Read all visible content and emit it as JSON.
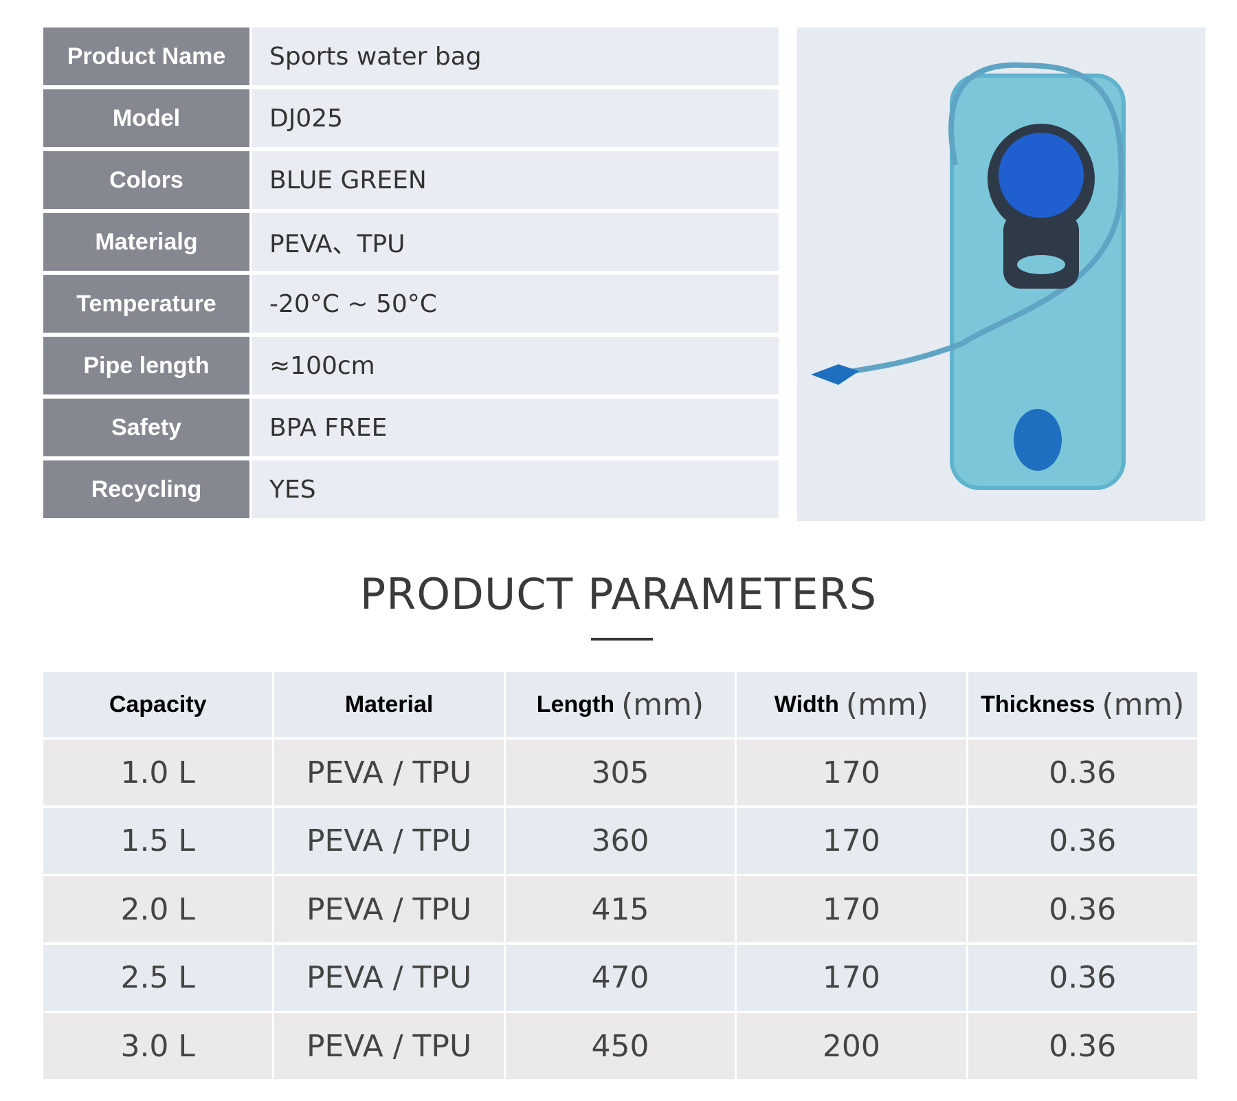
{
  "spec_table": {
    "rows": [
      {
        "label": "Product Name",
        "value": "Sports water bag"
      },
      {
        "label": "Model",
        "value": "DJ025"
      },
      {
        "label": "Colors",
        "value": "BLUE  GREEN"
      },
      {
        "label": "Materialg",
        "value": "PEVA、TPU"
      },
      {
        "label": "Temperature",
        "value": "-20°C ~ 50°C"
      },
      {
        "label": "Pipe length",
        "value": "≈100cm"
      },
      {
        "label": "Safety",
        "value": "BPA FREE"
      },
      {
        "label": "Recycling",
        "value": "YES"
      }
    ]
  },
  "parameters": {
    "title": "PRODUCT PARAMETERS",
    "headers": [
      {
        "name": "Capacity"
      },
      {
        "name": "Material"
      },
      {
        "name": "Length",
        "unit": "(mm)"
      },
      {
        "name": "Width",
        "unit": "(mm)"
      },
      {
        "name": "Thickness",
        "unit": "(mm)"
      }
    ],
    "rows": [
      [
        "1.0 L",
        "PEVA / TPU",
        "305",
        "170",
        "0.36"
      ],
      [
        "1.5 L",
        "PEVA / TPU",
        "360",
        "170",
        "0.36"
      ],
      [
        "2.0 L",
        "PEVA / TPU",
        "415",
        "170",
        "0.36"
      ],
      [
        "2.5 L",
        "PEVA / TPU",
        "470",
        "170",
        "0.36"
      ],
      [
        "3.0 L",
        "PEVA / TPU",
        "450",
        "200",
        "0.36"
      ]
    ]
  }
}
